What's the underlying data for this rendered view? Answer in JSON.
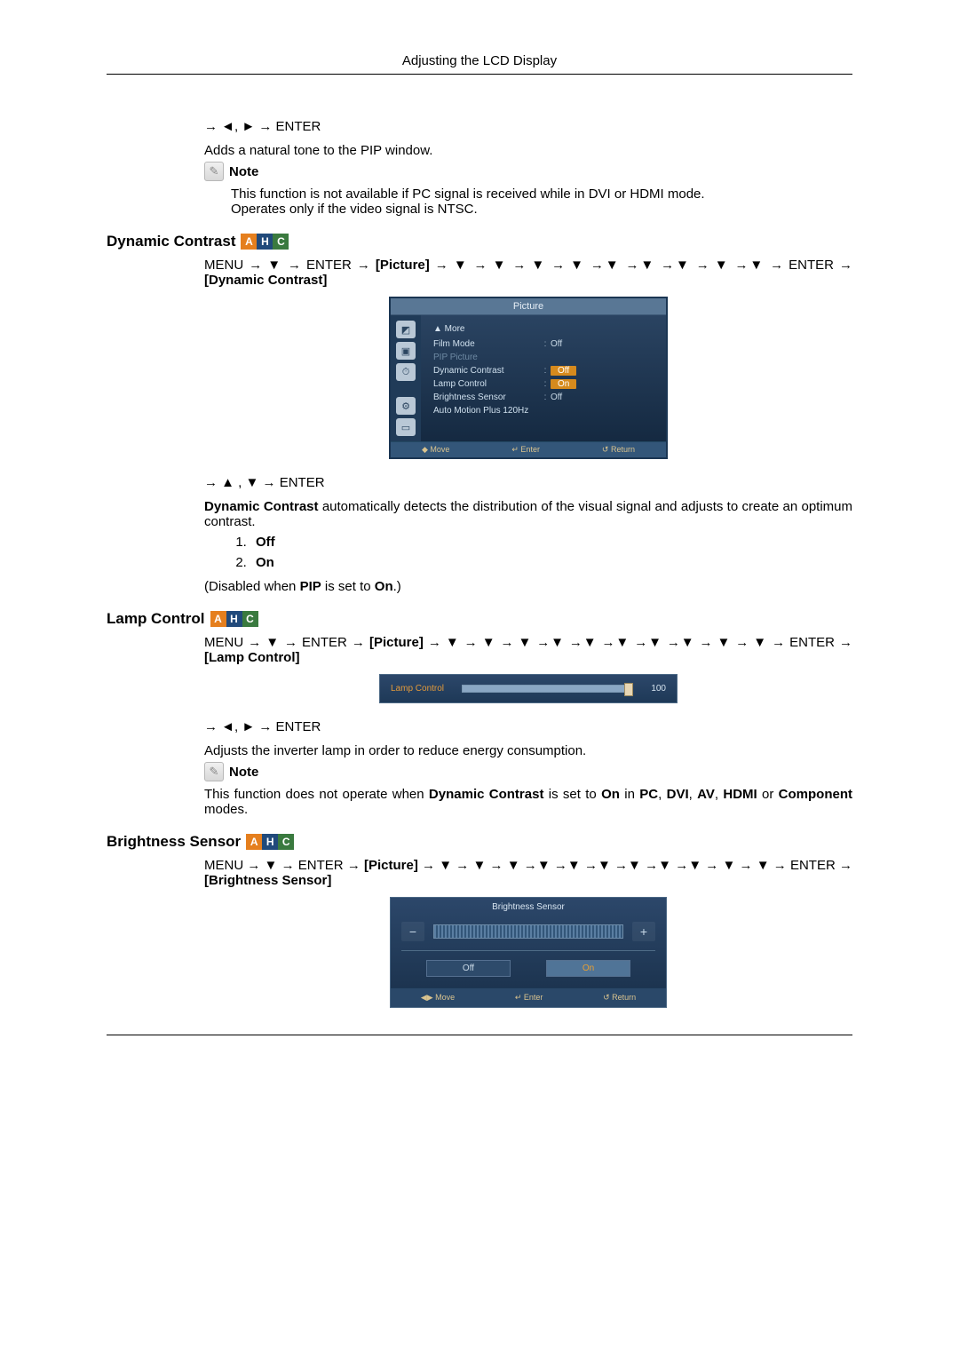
{
  "page_header": "Adjusting the LCD Display",
  "badge": {
    "a": {
      "text": "A",
      "bg": "#e57f1e"
    },
    "h": {
      "text": "H",
      "bg": "#214a7b"
    },
    "c": {
      "text": "C",
      "bg": "#3a7a3f"
    }
  },
  "nav": {
    "lr_enter": "→ ◄, ► → ENTER",
    "ud_enter": "→ ▲ , ▼ → ENTER"
  },
  "pip_tone": {
    "desc": "Adds a natural tone to the PIP window.",
    "note_label": "Note",
    "note_body1": "This function is not available if PC signal is received while in DVI or HDMI mode.",
    "note_body2": "Operates only if the video signal is NTSC."
  },
  "dynamic_contrast": {
    "heading": "Dynamic Contrast",
    "menu_path_pre": "MENU → ▼ → ENTER → ",
    "picture": "[Picture]",
    "menu_path_post": " → ▼ → ▼ → ▼ → ▼ →▼ →▼ →▼ → ▼ →▼ → ENTER → ",
    "target": "[Dynamic Contrast]",
    "summary_pre": "Dynamic Contrast",
    "summary_post": " automatically detects the distribution of the visual signal and adjusts to create an optimum contrast.",
    "options": [
      "Off",
      "On"
    ],
    "disabled_pre": "(Disabled when ",
    "disabled_b1": "PIP",
    "disabled_mid": " is set to ",
    "disabled_b2": "On",
    "disabled_post": ".)"
  },
  "osd_picture": {
    "title": "Picture",
    "more": "▲ More",
    "rows": [
      {
        "label": "Film Mode",
        "value": "Off",
        "dim": false,
        "hi": false
      },
      {
        "label": "PIP Picture",
        "value": "",
        "dim": true,
        "hi": false
      },
      {
        "label": "Dynamic Contrast",
        "value": "Off",
        "dim": false,
        "hi": true
      },
      {
        "label": "Lamp Control",
        "value": "On",
        "dim": false,
        "hi": true
      },
      {
        "label": "Brightness Sensor",
        "value": "Off",
        "dim": false,
        "hi": false
      },
      {
        "label": "Auto Motion Plus 120Hz",
        "value": "",
        "dim": false,
        "hi": false
      }
    ],
    "footer": {
      "move": "◆ Move",
      "enter": "↵ Enter",
      "return": "↺ Return"
    }
  },
  "lamp_control": {
    "heading": "Lamp Control",
    "menu_path_pre": "MENU → ▼ → ENTER → ",
    "picture": "[Picture]",
    "menu_path_post": " → ▼ → ▼ → ▼ →▼ →▼ →▼ →▼ →▼ → ▼ → ▼ → ENTER → ",
    "target": "[Lamp Control]",
    "desc": "Adjusts the inverter lamp in order to reduce energy consumption.",
    "note_label": "Note",
    "note_pre": "This function does not operate when ",
    "note_b1": "Dynamic Contrast",
    "note_mid1": " is set to ",
    "note_b2": "On",
    "note_mid2": " in ",
    "note_b3": "PC",
    "note_c1": ", ",
    "note_b4": "DVI",
    "note_c2": ", ",
    "note_b5": "AV",
    "note_c3": ", ",
    "note_b6": "HDMI",
    "note_mid3": " or ",
    "note_b7": "Component",
    "note_post": " modes."
  },
  "osd_lamp": {
    "label": "Lamp Control",
    "value": 100,
    "value_text": "100",
    "fill_pct": 100,
    "handle_pct": 96
  },
  "brightness_sensor": {
    "heading": "Brightness Sensor",
    "menu_path_pre": "MENU → ▼ → ENTER → ",
    "picture": "[Picture]",
    "menu_path_post": " → ▼ → ▼ → ▼ →▼ →▼ →▼ →▼ →▼ →▼ → ▼ → ▼ → ENTER → ",
    "target": "[Brightness Sensor]"
  },
  "osd_brightness": {
    "title": "Brightness Sensor",
    "minus": "−",
    "plus": "+",
    "off": "Off",
    "on": "On",
    "footer": {
      "move": "◀▶ Move",
      "enter": "↵ Enter",
      "return": "↺ Return"
    }
  }
}
